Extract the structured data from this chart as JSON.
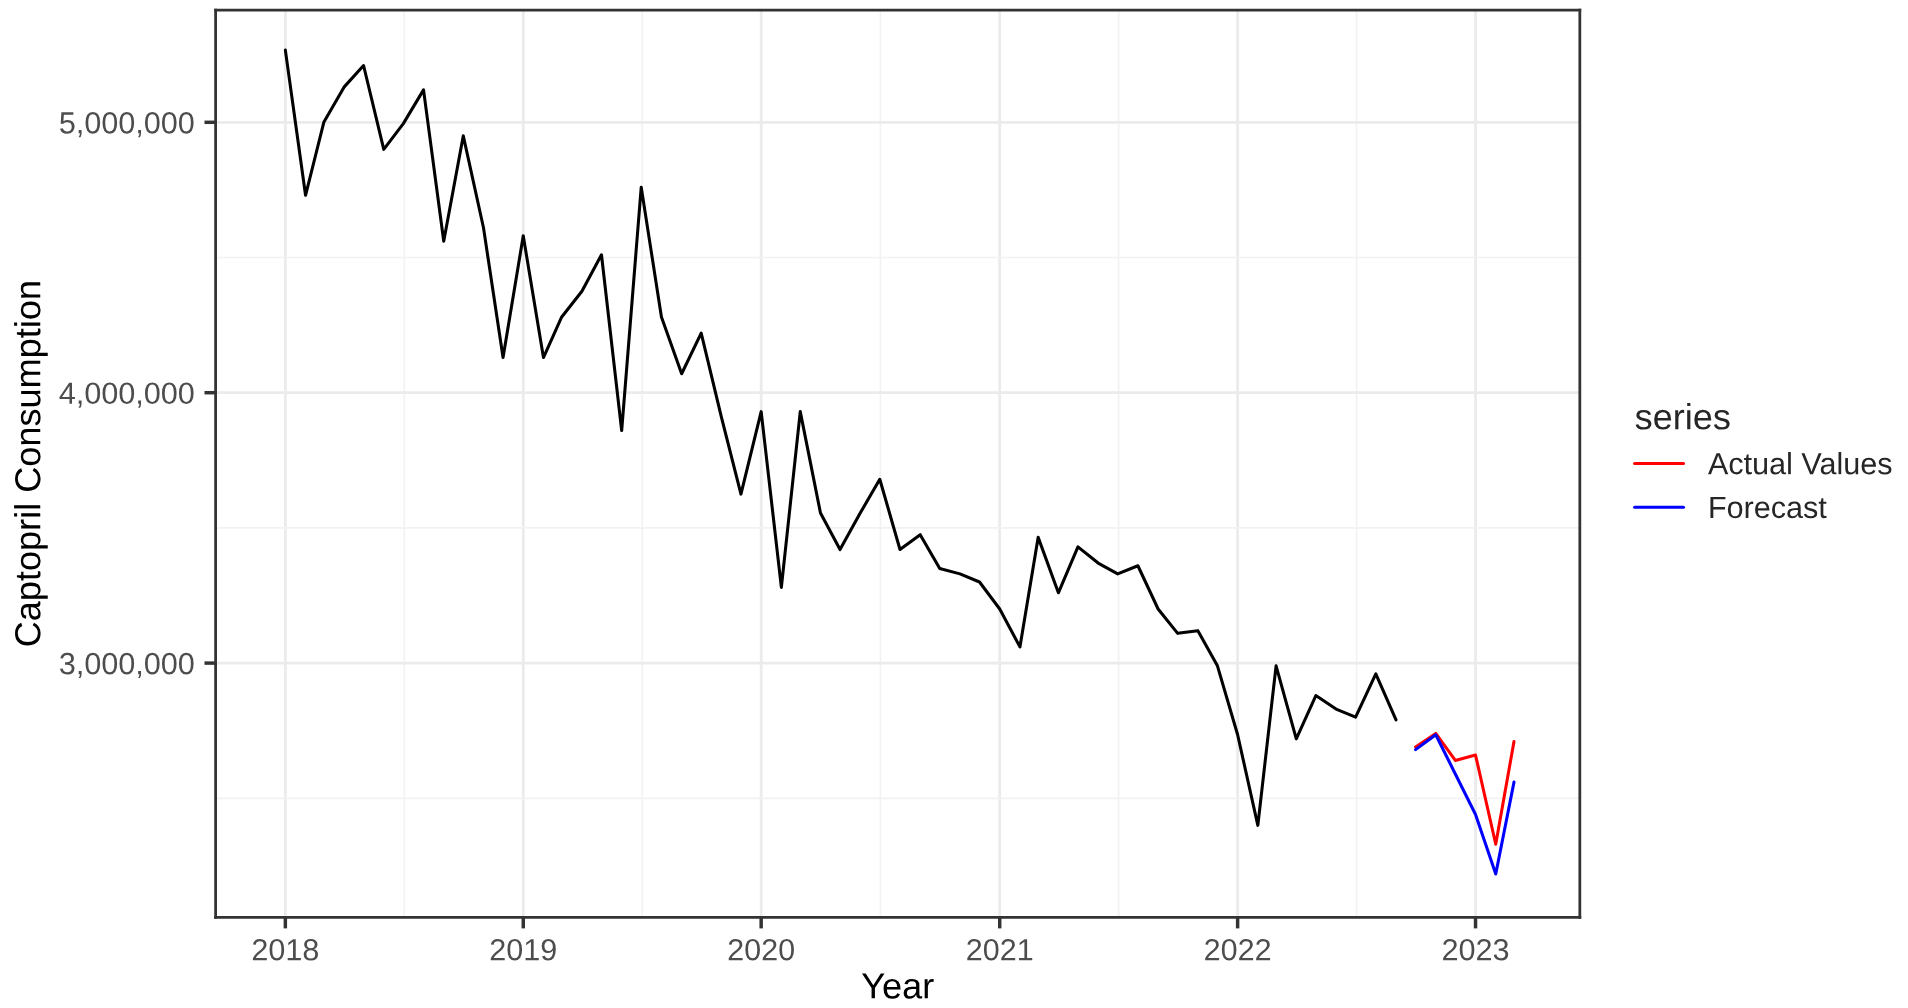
{
  "chart_data": {
    "type": "line",
    "xlabel": "Year",
    "ylabel": "Captopril Consumption",
    "legend_title": "series",
    "legend": "right",
    "grid": true,
    "series": [
      {
        "color": "#000000",
        "x": [
          "2018-01",
          "2018-02",
          "2018-03",
          "2018-04",
          "2018-05",
          "2018-06",
          "2018-07",
          "2018-08",
          "2018-09",
          "2018-10",
          "2018-11",
          "2018-12",
          "2019-01",
          "2019-02",
          "2019-03",
          "2019-04",
          "2019-05",
          "2019-06",
          "2019-07",
          "2019-08",
          "2019-09",
          "2019-10",
          "2019-11",
          "2019-12",
          "2020-01",
          "2020-02",
          "2020-03",
          "2020-04",
          "2020-05",
          "2020-06",
          "2020-07",
          "2020-08",
          "2020-09",
          "2020-10",
          "2020-11",
          "2020-12",
          "2021-01",
          "2021-02",
          "2021-03",
          "2021-04",
          "2021-05",
          "2021-06",
          "2021-07",
          "2021-08",
          "2021-09",
          "2021-10",
          "2021-11",
          "2021-12",
          "2022-01",
          "2022-02",
          "2022-03",
          "2022-04",
          "2022-05",
          "2022-06",
          "2022-07",
          "2022-08",
          "2022-09"
        ],
        "values": [
          5267000,
          4730000,
          5000000,
          5130000,
          5210000,
          4900000,
          4995000,
          5120000,
          4560000,
          4950000,
          4610000,
          4130000,
          4580000,
          4130000,
          4280000,
          4375000,
          4510000,
          3860000,
          4760000,
          4280000,
          4070000,
          4220000,
          3910000,
          3625000,
          3930000,
          3280000,
          3930000,
          3555000,
          3420000,
          3555000,
          3680000,
          3420000,
          3475000,
          3350000,
          3330000,
          3300000,
          3200000,
          3060000,
          3465000,
          3260000,
          3430000,
          3370000,
          3330000,
          3360000,
          3200000,
          3110000,
          3120000,
          2990000,
          2735000,
          2400000,
          2990000,
          2720000,
          2880000,
          2830000,
          2800000,
          2960000,
          2790000
        ]
      },
      {
        "name": "Actual Values",
        "color": "#ff0000",
        "x": [
          "2022-10",
          "2022-11",
          "2022-12",
          "2023-01",
          "2023-02",
          "2023-03"
        ],
        "values": [
          2690000,
          2740000,
          2640000,
          2660000,
          2330000,
          2710000
        ]
      },
      {
        "name": "Forecast",
        "color": "#0000ff",
        "x": [
          "2022-10",
          "2022-11",
          "2022-12",
          "2023-01",
          "2023-02",
          "2023-03"
        ],
        "values": [
          2680000,
          2735000,
          2590000,
          2440000,
          2220000,
          2560000
        ]
      }
    ],
    "xlim": [
      "2017-09-16",
      "2023-06-10"
    ],
    "xticks": [
      {
        "value": "2018-01",
        "label": "2018"
      },
      {
        "value": "2019-01",
        "label": "2019"
      },
      {
        "value": "2020-01",
        "label": "2020"
      },
      {
        "value": "2021-01",
        "label": "2021"
      },
      {
        "value": "2022-01",
        "label": "2022"
      },
      {
        "value": "2023-01",
        "label": "2023"
      }
    ],
    "ylim": [
      2060000,
      5415000
    ],
    "yticks": [
      {
        "value": 3000000,
        "label": "3,000,000"
      },
      {
        "value": 4000000,
        "label": "4,000,000"
      },
      {
        "value": 5000000,
        "label": "5,000,000"
      }
    ]
  }
}
